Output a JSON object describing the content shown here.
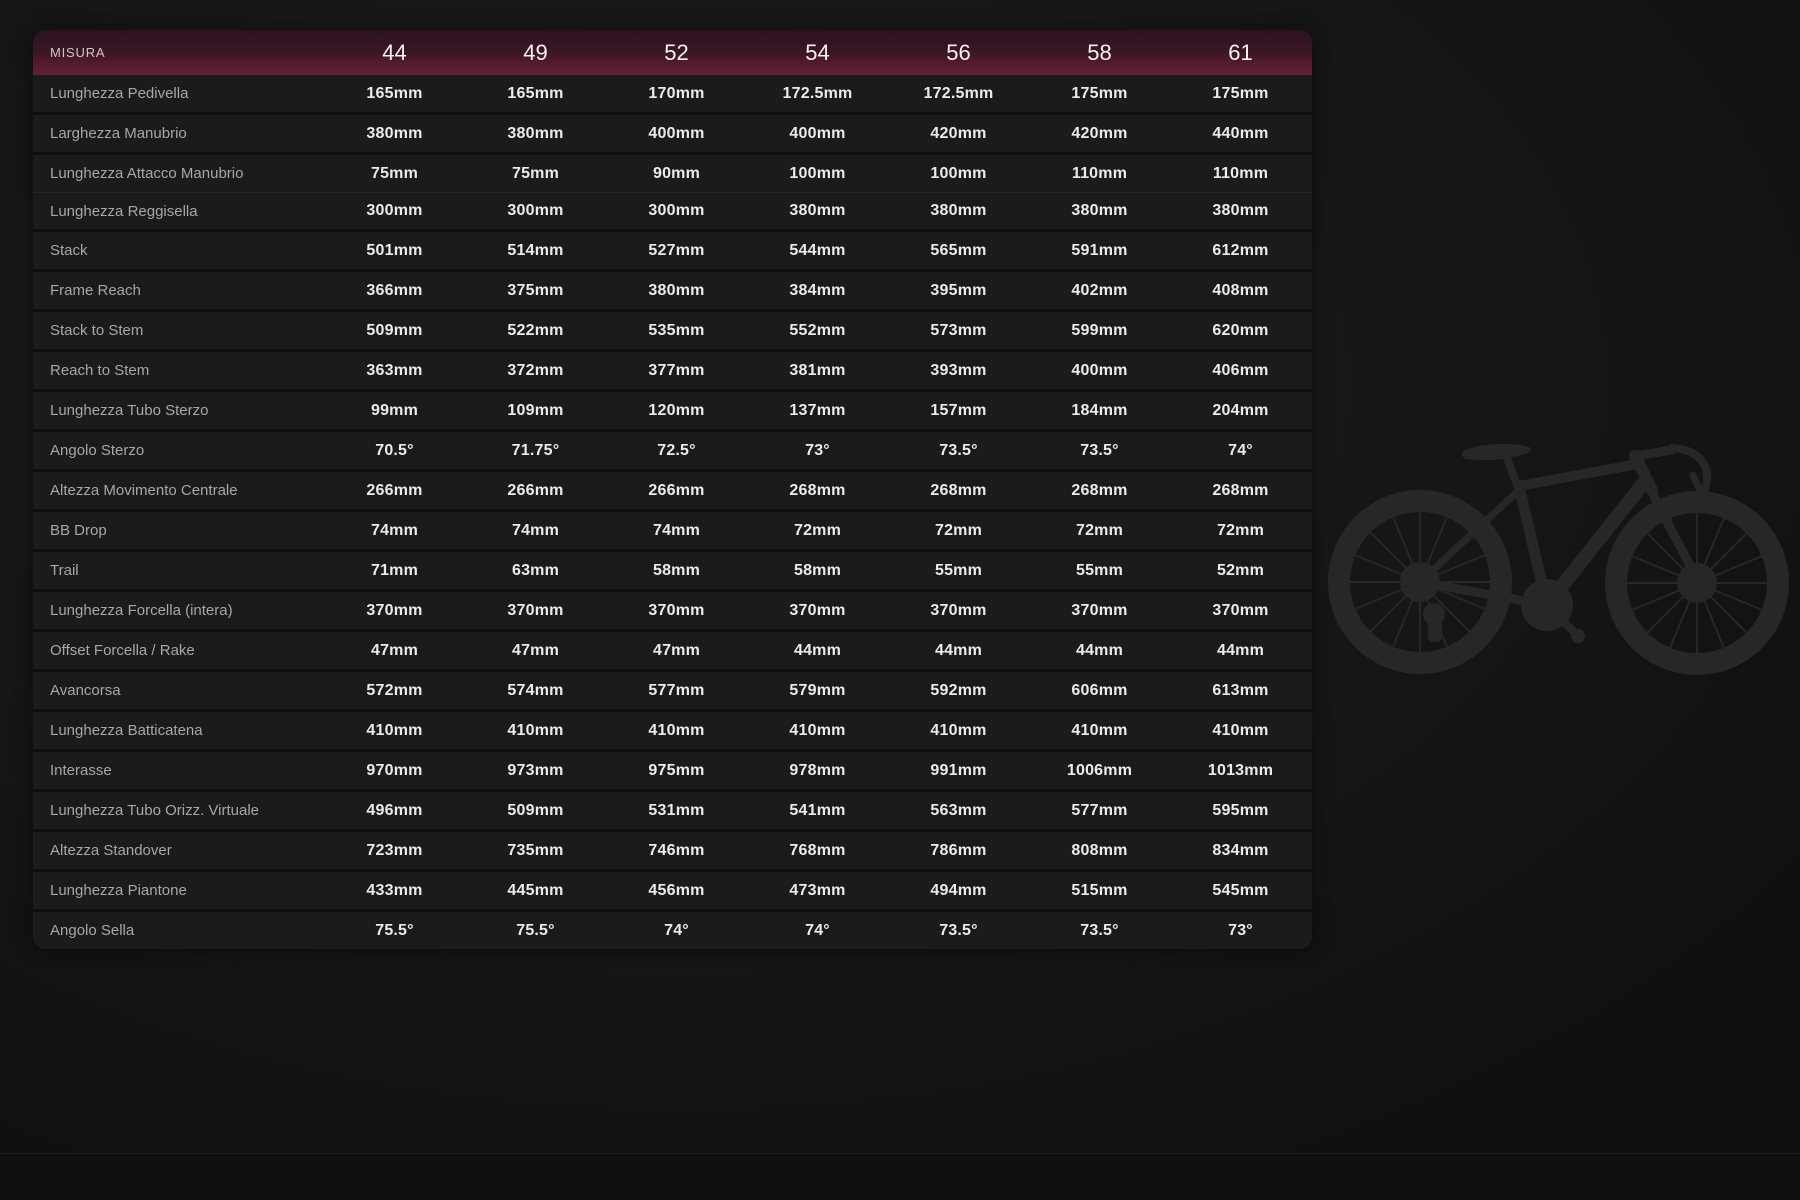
{
  "table": {
    "size_label": "MISURA",
    "sizes": [
      "44",
      "49",
      "52",
      "54",
      "56",
      "58",
      "61"
    ],
    "rows": [
      {
        "label": "Lunghezza Pedivella",
        "values": [
          "165mm",
          "165mm",
          "170mm",
          "172.5mm",
          "172.5mm",
          "175mm",
          "175mm"
        ]
      },
      {
        "label": "Larghezza Manubrio",
        "values": [
          "380mm",
          "380mm",
          "400mm",
          "400mm",
          "420mm",
          "420mm",
          "440mm"
        ]
      },
      {
        "label": "Lunghezza Attacco Manubrio",
        "values": [
          "75mm",
          "75mm",
          "90mm",
          "100mm",
          "100mm",
          "110mm",
          "110mm"
        ]
      },
      {
        "label": "Lunghezza Reggisella",
        "values": [
          "300mm",
          "300mm",
          "300mm",
          "380mm",
          "380mm",
          "380mm",
          "380mm"
        ]
      },
      {
        "label": "Stack",
        "values": [
          "501mm",
          "514mm",
          "527mm",
          "544mm",
          "565mm",
          "591mm",
          "612mm"
        ]
      },
      {
        "label": "Frame Reach",
        "values": [
          "366mm",
          "375mm",
          "380mm",
          "384mm",
          "395mm",
          "402mm",
          "408mm"
        ]
      },
      {
        "label": "Stack to Stem",
        "values": [
          "509mm",
          "522mm",
          "535mm",
          "552mm",
          "573mm",
          "599mm",
          "620mm"
        ]
      },
      {
        "label": "Reach to Stem",
        "values": [
          "363mm",
          "372mm",
          "377mm",
          "381mm",
          "393mm",
          "400mm",
          "406mm"
        ]
      },
      {
        "label": "Lunghezza Tubo Sterzo",
        "values": [
          "99mm",
          "109mm",
          "120mm",
          "137mm",
          "157mm",
          "184mm",
          "204mm"
        ]
      },
      {
        "label": "Angolo Sterzo",
        "values": [
          "70.5°",
          "71.75°",
          "72.5°",
          "73°",
          "73.5°",
          "73.5°",
          "74°"
        ]
      },
      {
        "label": "Altezza Movimento Centrale",
        "values": [
          "266mm",
          "266mm",
          "266mm",
          "268mm",
          "268mm",
          "268mm",
          "268mm"
        ]
      },
      {
        "label": "BB Drop",
        "values": [
          "74mm",
          "74mm",
          "74mm",
          "72mm",
          "72mm",
          "72mm",
          "72mm"
        ]
      },
      {
        "label": "Trail",
        "values": [
          "71mm",
          "63mm",
          "58mm",
          "58mm",
          "55mm",
          "55mm",
          "52mm"
        ]
      },
      {
        "label": "Lunghezza Forcella (intera)",
        "values": [
          "370mm",
          "370mm",
          "370mm",
          "370mm",
          "370mm",
          "370mm",
          "370mm"
        ]
      },
      {
        "label": "Offset Forcella / Rake",
        "values": [
          "47mm",
          "47mm",
          "47mm",
          "44mm",
          "44mm",
          "44mm",
          "44mm"
        ]
      },
      {
        "label": "Avancorsa",
        "values": [
          "572mm",
          "574mm",
          "577mm",
          "579mm",
          "592mm",
          "606mm",
          "613mm"
        ]
      },
      {
        "label": "Lunghezza Batticatena",
        "values": [
          "410mm",
          "410mm",
          "410mm",
          "410mm",
          "410mm",
          "410mm",
          "410mm"
        ]
      },
      {
        "label": "Interasse",
        "values": [
          "970mm",
          "973mm",
          "975mm",
          "978mm",
          "991mm",
          "1006mm",
          "1013mm"
        ]
      },
      {
        "label": "Lunghezza Tubo Orizz. Virtuale",
        "values": [
          "496mm",
          "509mm",
          "531mm",
          "541mm",
          "563mm",
          "577mm",
          "595mm"
        ]
      },
      {
        "label": "Altezza Standover",
        "values": [
          "723mm",
          "735mm",
          "746mm",
          "768mm",
          "786mm",
          "808mm",
          "834mm"
        ]
      },
      {
        "label": "Lunghezza Piantone",
        "values": [
          "433mm",
          "445mm",
          "456mm",
          "473mm",
          "494mm",
          "515mm",
          "545mm"
        ]
      },
      {
        "label": "Angolo Sella",
        "values": [
          "75.5°",
          "75.5°",
          "74°",
          "74°",
          "73.5°",
          "73.5°",
          "73°"
        ]
      }
    ]
  },
  "decor": {
    "bike_icon": "road-bike-silhouette"
  },
  "colors": {
    "header_maroon_top": "#2c1220",
    "header_maroon_bottom": "#5d2233",
    "row_background": "#1b1b1b",
    "page_background": "#161616",
    "value_text": "#ebebeb",
    "label_text": "#a8a6a7"
  }
}
